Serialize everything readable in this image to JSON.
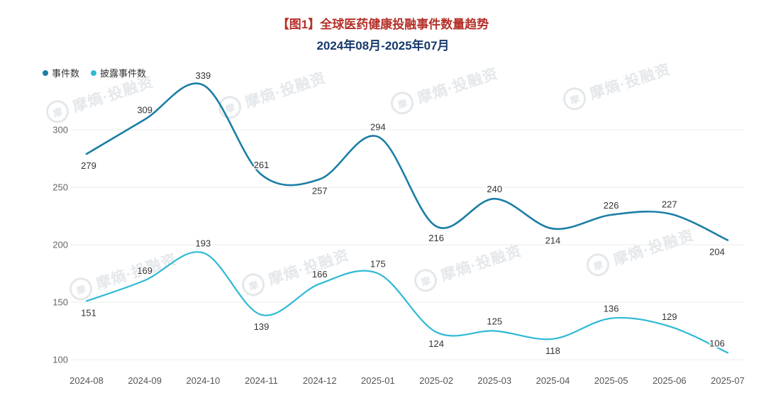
{
  "page": {
    "background": "#ffffff"
  },
  "header": {
    "title": "【图1】全球医药健康投融事件数量趋势",
    "subtitle": "2024年08月-2025年07月",
    "title_color": "#b5302a",
    "subtitle_color": "#16396b"
  },
  "legend": {
    "items": [
      {
        "label": "事件数",
        "color": "#1b7ea6"
      },
      {
        "label": "披露事件数",
        "color": "#2fb9d6"
      }
    ]
  },
  "watermark": {
    "logo_char": "摩",
    "text": "摩熵·投融资"
  },
  "axis_colors": {
    "tick_label": "#666666",
    "x_label": "#555555",
    "grid": "#ebebeb",
    "data_label": "#333333"
  },
  "chart_data": {
    "type": "line",
    "smooth": true,
    "title": "【图1】全球医药健康投融事件数量趋势",
    "subtitle": "2024年08月-2025年07月",
    "categories": [
      "2024-08",
      "2024-09",
      "2024-10",
      "2024-11",
      "2024-12",
      "2025-01",
      "2025-02",
      "2025-03",
      "2025-04",
      "2025-05",
      "2025-06",
      "2025-07"
    ],
    "series": [
      {
        "name": "事件数",
        "color": "#1b7ea6",
        "values": [
          279,
          309,
          339,
          261,
          257,
          294,
          216,
          240,
          214,
          226,
          227,
          204
        ],
        "label_side": [
          "below",
          "above",
          "above",
          "above",
          "below",
          "above",
          "below",
          "above",
          "below",
          "above",
          "above",
          "below"
        ]
      },
      {
        "name": "披露事件数",
        "color": "#2fb9d6",
        "values": [
          151,
          169,
          193,
          139,
          166,
          175,
          124,
          125,
          118,
          136,
          129,
          106
        ],
        "label_side": [
          "below",
          "above",
          "above",
          "below",
          "above",
          "above",
          "below",
          "above",
          "below",
          "above",
          "above",
          "above"
        ]
      }
    ],
    "y_ticks": [
      100,
      150,
      200,
      250,
      300
    ],
    "ylim": [
      100,
      350
    ],
    "xlabel": "",
    "ylabel": "",
    "grid": true,
    "legend_position": "top-left",
    "data_labels_shown": true
  }
}
